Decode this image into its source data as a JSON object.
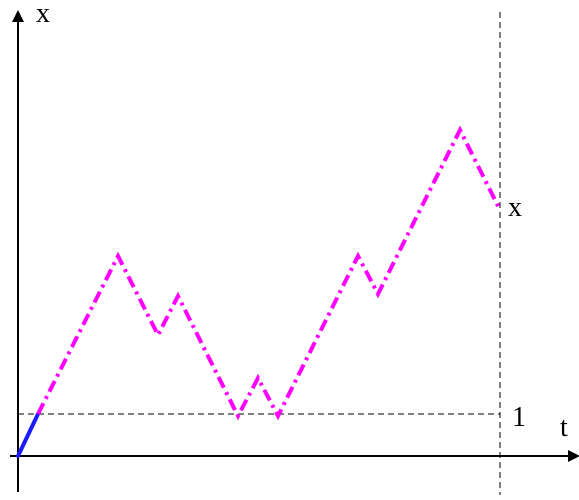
{
  "labels": {
    "y_axis": "x",
    "x_axis": "t",
    "level_one": "1",
    "endpoint": "x"
  },
  "colors": {
    "axes": "#000000",
    "guides": "#000000",
    "initial_segment": "#1a1aff",
    "path": "#ff00ff"
  }
}
